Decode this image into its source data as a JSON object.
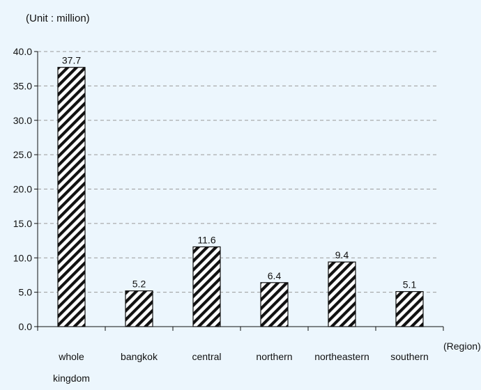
{
  "chart_data": {
    "type": "bar",
    "unit_label": "(Unit : million)",
    "xlabel": "(Region)",
    "ylabel": "",
    "ylim": [
      0,
      40
    ],
    "yticks": [
      "0.0",
      "5.0",
      "10.0",
      "15.0",
      "20.0",
      "25.0",
      "30.0",
      "35.0",
      "40.0"
    ],
    "categories": [
      "whole kingdom",
      "bangkok",
      "central",
      "northern",
      "northeastern",
      "southern"
    ],
    "category_lines": [
      [
        "whole",
        "kingdom"
      ],
      [
        "bangkok"
      ],
      [
        "central"
      ],
      [
        "northern"
      ],
      [
        "northeastern"
      ],
      [
        "southern"
      ]
    ],
    "values": [
      37.7,
      5.2,
      11.6,
      6.4,
      9.4,
      5.1
    ],
    "value_labels": [
      "37.7",
      "5.2",
      "11.6",
      "6.4",
      "9.4",
      "5.1"
    ],
    "grid": true,
    "bar_pattern": "diagonal-hatch",
    "colors": {
      "background": "#ecf6fd",
      "bar_stroke": "#111111",
      "hatch": "#111111",
      "grid": "#9a9a9a"
    }
  }
}
